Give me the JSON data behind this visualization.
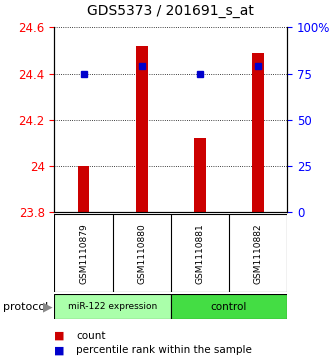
{
  "title": "GDS5373 / 201691_s_at",
  "samples": [
    "GSM1110879",
    "GSM1110880",
    "GSM1110881",
    "GSM1110882"
  ],
  "count_values": [
    24.0,
    24.52,
    24.12,
    24.49
  ],
  "percentile_values": [
    75,
    79,
    75,
    79
  ],
  "ymin": 23.8,
  "ymax": 24.6,
  "yticks_left": [
    23.8,
    24.0,
    24.2,
    24.4,
    24.6
  ],
  "ytick_left_labels": [
    "23.8",
    "24",
    "24.2",
    "24.4",
    "24.6"
  ],
  "yticks_right": [
    0,
    25,
    50,
    75,
    100
  ],
  "ytick_right_labels": [
    "0",
    "25",
    "50",
    "75",
    "100%"
  ],
  "bar_color": "#cc0000",
  "dot_color": "#0000cc",
  "bar_bottom": 23.8,
  "protocol_groups": [
    {
      "label": "miR-122 expression",
      "indices": [
        0,
        1
      ],
      "color": "#aaffaa"
    },
    {
      "label": "control",
      "indices": [
        2,
        3
      ],
      "color": "#44dd44"
    }
  ],
  "legend_count_label": "count",
  "legend_percentile_label": "percentile rank within the sample",
  "protocol_label": "protocol",
  "sample_box_color": "#cccccc",
  "title_fontsize": 10,
  "axis_fontsize": 8.5
}
